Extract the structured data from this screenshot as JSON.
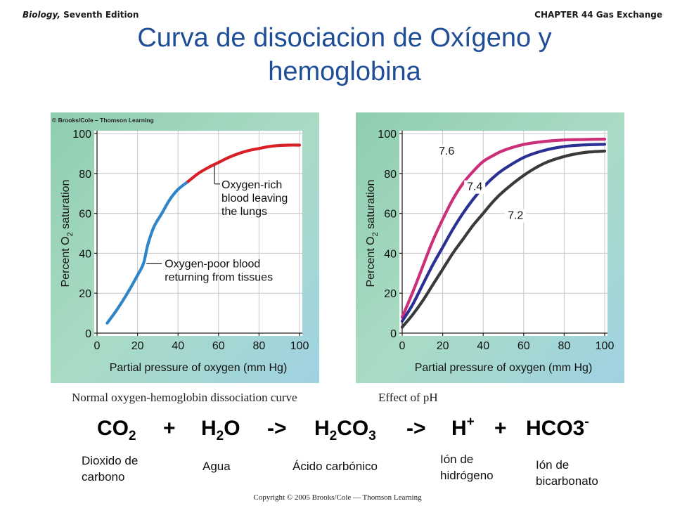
{
  "header": {
    "left_italic": "Biology,",
    "left_rest": "Seventh Edition",
    "right": "CHAPTER 44 Gas Exchange"
  },
  "title_line1": "Curva de disociacion de Oxígeno y",
  "title_line2": "hemoglobina",
  "chart_data": [
    {
      "type": "line",
      "credit": "© Brooks/Cole – Thomson Learning",
      "caption": "Normal oxygen-hemoglobin dissociation curve",
      "xlabel": "Partial pressure of oxygen (mm Hg)",
      "ylabel_main": "Percent O",
      "ylabel_sub": "2",
      "ylabel_tail": " saturation",
      "xlim": [
        0,
        100
      ],
      "ylim": [
        0,
        100
      ],
      "xticks": [
        0,
        20,
        40,
        60,
        80,
        100
      ],
      "yticks": [
        0,
        20,
        40,
        60,
        80,
        100
      ],
      "grid": true,
      "series": [
        {
          "color": "#2e86c8",
          "x": [
            5,
            10,
            15,
            20,
            23,
            25,
            28,
            32,
            36,
            40,
            45
          ],
          "y": [
            5,
            12,
            20,
            29,
            35,
            44,
            53,
            60,
            67,
            72,
            76
          ]
        },
        {
          "color": "#d81f26",
          "x": [
            45,
            50,
            55,
            60,
            65,
            70,
            75,
            80,
            85,
            90,
            95,
            100
          ],
          "y": [
            76,
            80,
            83,
            85.5,
            88,
            90,
            91.5,
            92.5,
            93.5,
            94,
            94.2,
            94.2
          ]
        }
      ],
      "annotations": [
        {
          "lines": [
            "Oxygen-rich",
            "blood leaving",
            "the lungs"
          ],
          "at_x": 58,
          "at_y": 86
        },
        {
          "lines": [
            "Oxygen-poor blood",
            "returning from tissues"
          ],
          "at_x": 23,
          "at_y": 35
        }
      ]
    },
    {
      "type": "line",
      "caption": "Effect of pH",
      "xlabel": "Partial pressure of oxygen (mm Hg)",
      "ylabel_main": "Percent O",
      "ylabel_sub": "2",
      "ylabel_tail": " saturation",
      "xlim": [
        0,
        100
      ],
      "ylim": [
        0,
        100
      ],
      "xticks": [
        0,
        20,
        40,
        60,
        80,
        100
      ],
      "yticks": [
        0,
        20,
        40,
        60,
        80,
        100
      ],
      "grid": true,
      "series": [
        {
          "label": "7.6",
          "color": "#cc2f7a",
          "x": [
            0,
            5,
            10,
            15,
            20,
            25,
            30,
            35,
            40,
            45,
            50,
            60,
            70,
            80,
            90,
            100
          ],
          "y": [
            8,
            20,
            33,
            46,
            57,
            67,
            75,
            81,
            86,
            89,
            91.5,
            94.5,
            96,
            96.8,
            97,
            97.2
          ]
        },
        {
          "label": "7.4",
          "color": "#2b3192",
          "x": [
            0,
            5,
            10,
            15,
            20,
            25,
            30,
            35,
            40,
            45,
            50,
            60,
            70,
            80,
            90,
            100
          ],
          "y": [
            6,
            14,
            24,
            34,
            43,
            52,
            60,
            67,
            73,
            78,
            82,
            88,
            91.5,
            93.5,
            94.3,
            94.6
          ]
        },
        {
          "label": "7.2",
          "color": "#3a3a3a",
          "x": [
            0,
            5,
            10,
            15,
            20,
            25,
            30,
            35,
            40,
            45,
            50,
            60,
            70,
            80,
            90,
            100
          ],
          "y": [
            3,
            9,
            16,
            24,
            32,
            40,
            47,
            54,
            60,
            66,
            71,
            79,
            85,
            88.5,
            90.5,
            91.2
          ]
        }
      ]
    }
  ],
  "equation": {
    "co2_main": "CO",
    "co2_sub": "2",
    "plus1": "+",
    "h2o_h": "H",
    "h2o_sub": "2",
    "h2o_o": "O",
    "arrow1": "->",
    "h2co3_h": "H",
    "h2co3_sub1": "2",
    "h2co3_co": "CO",
    "h2co3_sub2": "3",
    "arrow2": "->",
    "h_main": "H",
    "h_sup": "+",
    "plus2": "+",
    "hco3_main": "HCO3",
    "hco3_sup": "-"
  },
  "labels": {
    "co2": [
      "Dioxido de",
      "carbono"
    ],
    "h2o": "Agua",
    "h2co3": "Ácido carbónico",
    "h": [
      "Ión de",
      "hidrógeno"
    ],
    "hco3": [
      "Ión de",
      "bicarbonato"
    ]
  },
  "copyright": "Copyright © 2005 Brooks/Cole — Thomson Learning"
}
